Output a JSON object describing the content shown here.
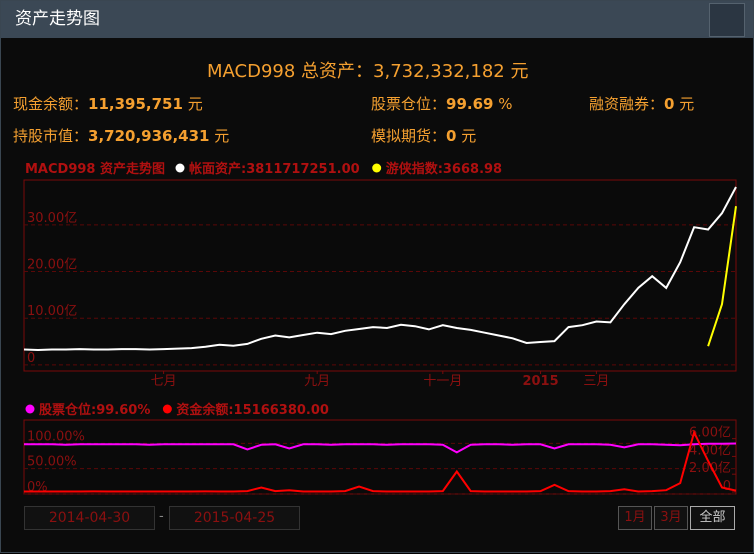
{
  "header": {
    "title": "资产走势图"
  },
  "summary": {
    "total_label": "MACD998 总资产：",
    "total_value": "3,732,332,182",
    "total_unit": "元",
    "fields": [
      {
        "label": "现金余额：",
        "value": "11,395,751",
        "unit": "元"
      },
      {
        "label": "股票仓位：",
        "value": "99.69",
        "unit": "%"
      },
      {
        "label": "融资融券：",
        "value": "0",
        "unit": "元"
      },
      {
        "label": "持股市值：",
        "value": "3,720,936,431",
        "unit": "元"
      },
      {
        "label": "模拟期货：",
        "value": "0",
        "unit": "元"
      }
    ]
  },
  "chart_data": [
    {
      "type": "line",
      "title": "MACD998 资产走势图",
      "xlim": [
        0,
        51
      ],
      "xticks": [
        {
          "value": 10,
          "label": "七月"
        },
        {
          "value": 21,
          "label": "九月"
        },
        {
          "value": 30,
          "label": "十一月"
        },
        {
          "value": 37,
          "label": "2015"
        },
        {
          "value": 41,
          "label": "三月"
        }
      ],
      "ylim": [
        -1.3,
        39.6
      ],
      "yticks": [
        0,
        {
          "value": 10,
          "label": "10.00亿"
        },
        {
          "value": 20,
          "label": "20.00亿"
        },
        {
          "value": 30,
          "label": "30.00亿"
        }
      ],
      "grid": true,
      "series": [
        {
          "name": "帐面资产:3811717251.00",
          "color": "#ffffff",
          "values": [
            3.3,
            3.2,
            3.3,
            3.3,
            3.4,
            3.3,
            3.3,
            3.4,
            3.4,
            3.3,
            3.4,
            3.5,
            3.6,
            3.9,
            4.3,
            4.1,
            4.5,
            5.6,
            6.3,
            5.9,
            6.4,
            6.9,
            6.6,
            7.3,
            7.7,
            8.1,
            7.9,
            8.6,
            8.3,
            7.6,
            8.5,
            7.9,
            7.5,
            6.9,
            6.3,
            5.7,
            4.7,
            4.9,
            5.1,
            8.1,
            8.5,
            9.3,
            9.1,
            13,
            16.5,
            19,
            16.5,
            22,
            29.5,
            29,
            32.5,
            38.1
          ]
        },
        {
          "name": "游侠指数:3668.98",
          "color": "#ffff00",
          "values": [
            null,
            null,
            null,
            null,
            null,
            null,
            null,
            null,
            null,
            null,
            null,
            null,
            null,
            null,
            null,
            null,
            null,
            null,
            null,
            null,
            null,
            null,
            null,
            null,
            null,
            null,
            null,
            null,
            null,
            null,
            null,
            null,
            null,
            null,
            null,
            null,
            null,
            null,
            null,
            null,
            null,
            null,
            null,
            null,
            null,
            null,
            null,
            null,
            null,
            4,
            13,
            34
          ]
        }
      ]
    },
    {
      "type": "line",
      "xlim": [
        0,
        51
      ],
      "ylim": [
        0,
        146
      ],
      "yticks": [
        {
          "value": 0,
          "label": "0%"
        },
        {
          "value": 50,
          "label": "50.00%"
        },
        {
          "value": 100,
          "label": "100.00%"
        }
      ],
      "y2lim": [
        -0.23,
        8.1
      ],
      "y2ticks": [
        0,
        {
          "value": 2,
          "label": "2.00亿"
        },
        {
          "value": 4,
          "label": "4.00亿"
        },
        {
          "value": 6,
          "label": "6.00亿"
        }
      ],
      "grid": true,
      "series": [
        {
          "name": "股票仓位:99.60%",
          "color": "#ff00ff",
          "values": [
            98,
            98,
            98,
            97,
            98,
            98,
            98,
            98,
            98,
            97,
            98,
            98,
            98,
            98,
            98,
            98,
            88,
            97,
            98,
            90,
            98,
            98,
            97,
            98,
            98,
            98,
            97,
            98,
            98,
            98,
            97,
            82,
            97,
            98,
            98,
            97,
            98,
            98,
            90,
            98,
            98,
            98,
            97,
            92,
            98,
            98,
            97,
            96,
            98,
            99,
            99,
            99.6
          ]
        },
        {
          "name": "资金余额:15166380.00",
          "color": "#ff0000",
          "axis": "y2",
          "values": [
            0.05,
            0.05,
            0.05,
            0.05,
            0.05,
            0.06,
            0.05,
            0.05,
            0.05,
            0.05,
            0.05,
            0.05,
            0.05,
            0.06,
            0.05,
            0.05,
            0.1,
            0.5,
            0.1,
            0.2,
            0.05,
            0.05,
            0.05,
            0.1,
            0.6,
            0.1,
            0.05,
            0.05,
            0.05,
            0.05,
            0.1,
            2.3,
            0.1,
            0.05,
            0.05,
            0.05,
            0.05,
            0.1,
            0.8,
            0.1,
            0.05,
            0.05,
            0.1,
            0.3,
            0.05,
            0.1,
            0.2,
            1,
            6.7,
            3.5,
            0.5,
            0.15
          ]
        }
      ]
    }
  ],
  "controls": {
    "start_date": "2014-04-30",
    "separator": "-",
    "end_date": "2015-04-25",
    "buttons": [
      "1月",
      "3月",
      "全部"
    ]
  }
}
